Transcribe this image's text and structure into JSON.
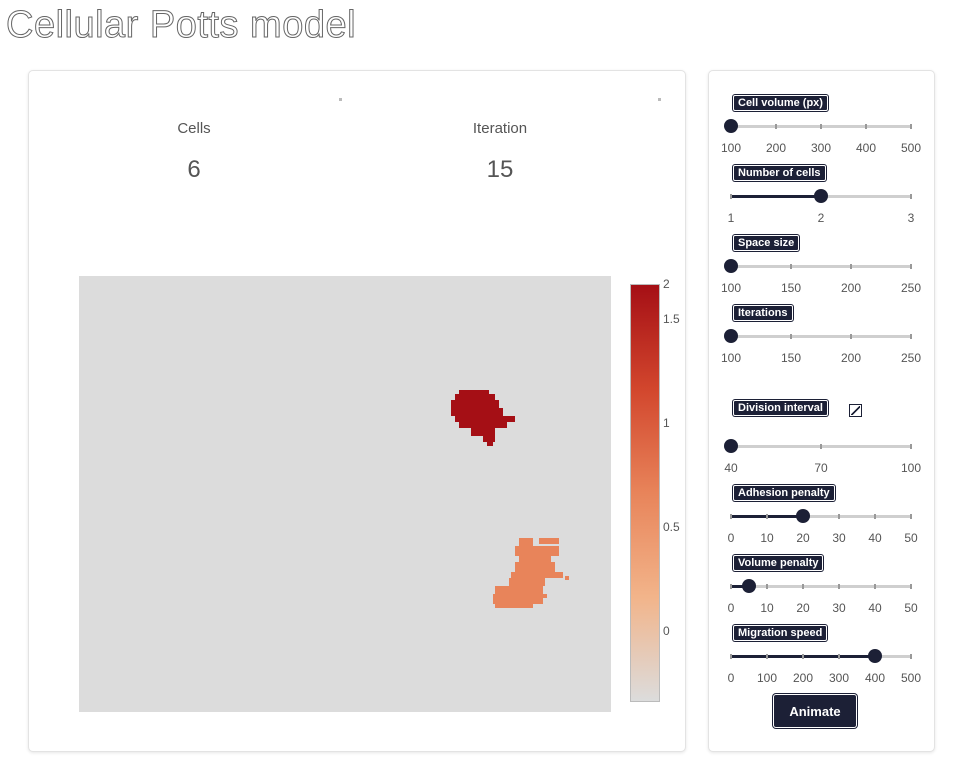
{
  "page": {
    "title": "Cellular Potts model"
  },
  "stats": [
    {
      "label": "Cells",
      "value": "6"
    },
    {
      "label": "Iteration",
      "value": "15"
    }
  ],
  "heatmap": {
    "colorbar_ticks": [
      "2",
      "1.5",
      "1",
      "0.5",
      "0"
    ],
    "colors": {
      "background": "#dcdcdc",
      "high": "#a50f15",
      "mid": "#e8845a",
      "low": "#dcdcdc"
    }
  },
  "controls": {
    "cell_volume": {
      "label": "Cell volume (px)",
      "ticks": [
        "100",
        "200",
        "300",
        "400",
        "500"
      ],
      "value": 100,
      "min": 100,
      "max": 500
    },
    "number_of_cells": {
      "label": "Number of cells",
      "ticks": [
        "1",
        "2",
        "3"
      ],
      "value": 2,
      "min": 1,
      "max": 3
    },
    "space_size": {
      "label": "Space size",
      "ticks": [
        "100",
        "150",
        "200",
        "250"
      ],
      "value": 100,
      "min": 100,
      "max": 250
    },
    "iterations": {
      "label": "Iterations",
      "ticks": [
        "100",
        "150",
        "200",
        "250"
      ],
      "value": 100,
      "min": 100,
      "max": 250
    },
    "division_interval": {
      "label": "Division interval",
      "checked": true,
      "ticks": [
        "40",
        "70",
        "100"
      ],
      "value": 40,
      "min": 40,
      "max": 100
    },
    "adhesion_penalty": {
      "label": "Adhesion penalty",
      "ticks": [
        "0",
        "10",
        "20",
        "30",
        "40",
        "50"
      ],
      "value": 20,
      "min": 0,
      "max": 50
    },
    "volume_penalty": {
      "label": "Volume penalty",
      "ticks": [
        "0",
        "10",
        "20",
        "30",
        "40",
        "50"
      ],
      "value": 5,
      "min": 0,
      "max": 50
    },
    "migration_speed": {
      "label": "Migration speed",
      "ticks": [
        "0",
        "100",
        "200",
        "300",
        "400",
        "500"
      ],
      "value": 400,
      "min": 0,
      "max": 500
    }
  },
  "animate_label": "Animate"
}
